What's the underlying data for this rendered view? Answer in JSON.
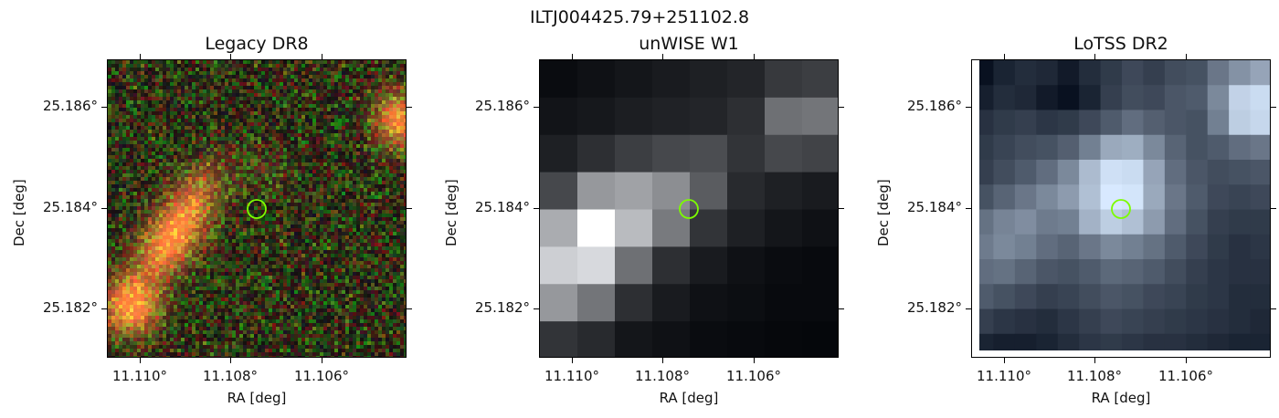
{
  "figure": {
    "title": "ILTJ004425.79+251102.8",
    "panels": [
      {
        "title": "Legacy DR8",
        "xlabel": "RA [deg]",
        "ylabel": "Dec [deg]",
        "xticks": [
          "11.110°",
          "11.108°",
          "11.106°"
        ],
        "yticks": [
          "25.186°",
          "25.184°",
          "25.182°"
        ],
        "marker_color": "#7cfc00"
      },
      {
        "title": "unWISE W1",
        "xlabel": "RA [deg]",
        "ylabel": "Dec [deg]",
        "xticks": [
          "11.110°",
          "11.108°",
          "11.106°"
        ],
        "yticks": [
          "25.186°",
          "25.184°",
          "25.182°"
        ],
        "marker_color": "#7cfc00"
      },
      {
        "title": "LoTSS DR2",
        "xlabel": "RA [deg]",
        "ylabel": "Dec [deg]",
        "xticks": [
          "11.110°",
          "11.108°",
          "11.106°"
        ],
        "yticks": [
          "25.186°",
          "25.184°",
          "25.182°"
        ],
        "marker_color": "#7cfc00"
      }
    ]
  }
}
